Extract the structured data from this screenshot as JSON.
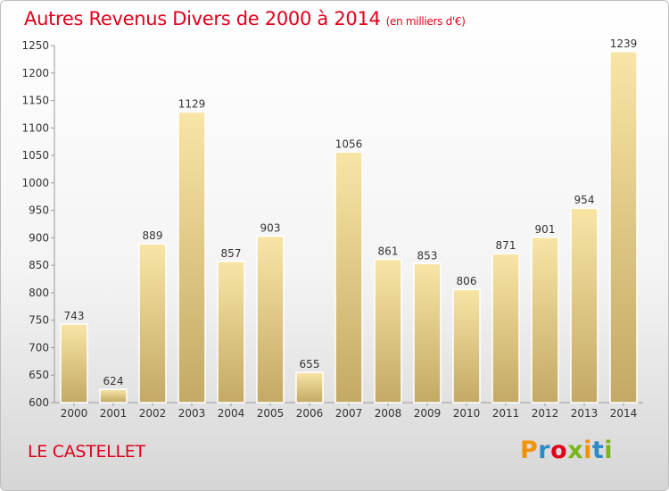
{
  "header": {
    "title": "Autres Revenus Divers de 2000 à 2014",
    "unit": "(en milliers d'€)"
  },
  "footer": {
    "commune": "LE CASTELLET",
    "brand": "Proxiti"
  },
  "colors": {
    "title": "#e0001b",
    "bar_light": "#f8e5a6",
    "bar_dark": "#c3a964",
    "logo_letters": [
      "#f39200",
      "#2e8ac6",
      "#e0001b",
      "#7ab51d",
      "#f39200",
      "#2e8ac6",
      "#7ab51d"
    ]
  },
  "chart_data": {
    "type": "bar",
    "title": "Autres Revenus Divers de 2000 à 2014",
    "categories": [
      "2000",
      "2001",
      "2002",
      "2003",
      "2004",
      "2005",
      "2006",
      "2007",
      "2008",
      "2009",
      "2010",
      "2011",
      "2012",
      "2013",
      "2014"
    ],
    "values": [
      743,
      624,
      889,
      1129,
      857,
      903,
      655,
      1056,
      861,
      853,
      806,
      871,
      901,
      954,
      1239
    ],
    "ylim": [
      600,
      1250
    ],
    "yticks": [
      600,
      650,
      700,
      750,
      800,
      850,
      900,
      950,
      1000,
      1050,
      1100,
      1150,
      1200,
      1250
    ],
    "grid": false,
    "xlabel": "",
    "ylabel": ""
  }
}
